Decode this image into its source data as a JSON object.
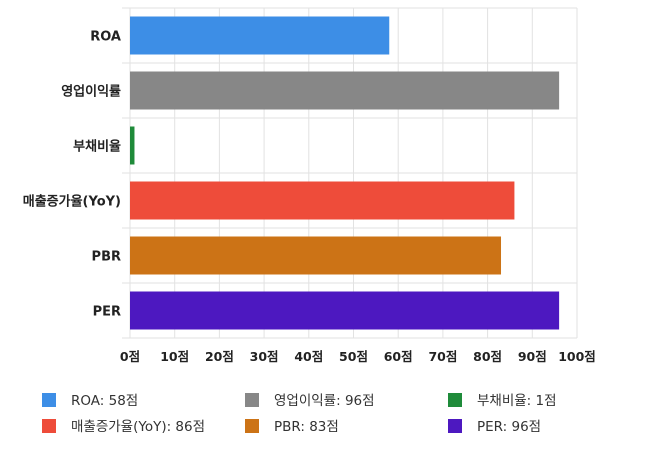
{
  "chart_data": {
    "type": "bar",
    "orientation": "horizontal",
    "categories": [
      "ROA",
      "영업이익률",
      "부채비율",
      "매출증가율(YoY)",
      "PBR",
      "PER"
    ],
    "values": [
      58,
      96,
      1,
      86,
      83,
      96
    ],
    "colors": [
      "#3d8ee6",
      "#878787",
      "#1f8b3a",
      "#ee4c3a",
      "#cc7316",
      "#4d18c0"
    ],
    "xlim": [
      0,
      100
    ],
    "x_ticks": [
      0,
      10,
      20,
      30,
      40,
      50,
      60,
      70,
      80,
      90,
      100
    ],
    "x_tick_suffix": "점",
    "grid": true,
    "legend_position": "bottom",
    "legend": [
      "ROA: 58점",
      "영업이익률: 96점",
      "부채비율: 1점",
      "매출증가율(YoY): 86점",
      "PBR: 83점",
      "PER: 96점"
    ]
  }
}
